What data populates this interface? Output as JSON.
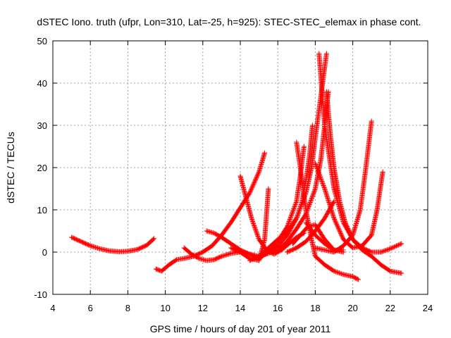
{
  "chart_data": {
    "type": "scatter",
    "title": "dSTEC Iono. truth (ufpr, Lon=310, Lat=-25, h=925): STEC-STEC_elemax in phase cont.",
    "xlabel": "GPS time / hours of day 201 of year 2011",
    "ylabel": "dSTEC  / TECUs",
    "xlim": [
      4,
      24
    ],
    "ylim": [
      -10,
      50
    ],
    "x_ticks": [
      4,
      6,
      8,
      10,
      12,
      14,
      16,
      18,
      20,
      22,
      24
    ],
    "y_ticks": [
      -10,
      0,
      10,
      20,
      30,
      40,
      50
    ],
    "grid": true,
    "marker": "+",
    "color": "#ff0000",
    "series": [
      {
        "x": [
          5.0,
          5.5,
          6.0,
          6.5,
          7.0,
          7.5,
          8.0,
          8.5,
          9.0,
          9.4
        ],
        "y": [
          3.5,
          2.5,
          1.5,
          0.8,
          0.3,
          0.1,
          0.2,
          0.6,
          1.6,
          3.2
        ]
      },
      {
        "x": [
          9.5,
          9.8,
          10.2,
          10.6,
          11.0,
          11.5,
          12.0,
          12.5,
          13.0,
          13.5,
          14.0,
          14.5,
          15.0,
          15.3
        ],
        "y": [
          -4.0,
          -4.5,
          -3.0,
          -1.8,
          -1.5,
          -1.0,
          0.0,
          1.5,
          4.0,
          7.0,
          10.5,
          14.0,
          19.0,
          23.5
        ]
      },
      {
        "x": [
          11.0,
          11.4,
          11.8,
          12.2,
          12.6,
          13.0,
          13.5,
          14.0,
          14.5,
          15.0
        ],
        "y": [
          1.0,
          -0.5,
          -1.5,
          -2.0,
          -1.8,
          -1.0,
          -0.3,
          0.0,
          -0.5,
          -1.5
        ]
      },
      {
        "x": [
          12.2,
          12.6,
          13.0,
          13.5,
          14.0,
          14.5,
          15.0,
          15.5,
          16.0
        ],
        "y": [
          5.0,
          4.5,
          3.5,
          2.0,
          0.5,
          -0.5,
          -1.0,
          -0.3,
          0.5
        ]
      },
      {
        "x": [
          14.0,
          14.3,
          14.6,
          15.0,
          15.4,
          15.8,
          16.2,
          16.6,
          17.0,
          17.4
        ],
        "y": [
          18.0,
          13.0,
          8.0,
          3.0,
          0.5,
          -0.5,
          0.5,
          2.0,
          3.5,
          4.5
        ]
      },
      {
        "x": [
          13.5,
          14.0,
          14.5,
          15.0,
          15.3,
          15.5
        ],
        "y": [
          1.0,
          0.0,
          -1.5,
          -2.0,
          3.0,
          15.0
        ]
      },
      {
        "x": [
          14.5,
          15.0,
          15.5,
          16.0,
          16.5,
          17.0,
          17.3,
          17.5,
          17.7,
          17.85
        ],
        "y": [
          -2.0,
          -1.0,
          1.0,
          3.0,
          5.0,
          8.0,
          12.0,
          17.0,
          23.0,
          30.0
        ]
      },
      {
        "x": [
          15.0,
          15.5,
          16.0,
          16.5,
          17.0,
          17.2,
          17.4
        ],
        "y": [
          -1.5,
          0.0,
          2.5,
          6.0,
          12.0,
          18.0,
          25.0
        ]
      },
      {
        "x": [
          17.0,
          17.2,
          17.5,
          17.8,
          18.0,
          18.5,
          19.0,
          19.5,
          20.0,
          20.3
        ],
        "y": [
          26.0,
          20.0,
          10.0,
          3.0,
          -1.0,
          -3.0,
          -4.5,
          -5.3,
          -5.8,
          -6.5
        ]
      },
      {
        "x": [
          15.5,
          16.0,
          16.5,
          17.0,
          17.5,
          17.8,
          18.0,
          18.3,
          18.6
        ],
        "y": [
          0.0,
          1.5,
          4.0,
          8.0,
          14.0,
          20.0,
          27.0,
          37.0,
          47.0
        ]
      },
      {
        "x": [
          16.0,
          16.5,
          17.0,
          17.5,
          18.0,
          18.3,
          18.5,
          18.7
        ],
        "y": [
          0.5,
          2.5,
          5.5,
          9.0,
          15.0,
          22.0,
          30.0,
          38.0
        ]
      },
      {
        "x": [
          18.2,
          18.5,
          19.0,
          19.5,
          20.0,
          20.5,
          21.0,
          21.5,
          22.0,
          22.6
        ],
        "y": [
          47.0,
          30.0,
          15.0,
          7.0,
          3.0,
          0.5,
          -1.0,
          -3.0,
          -4.5,
          -5.0
        ]
      },
      {
        "x": [
          18.6,
          18.8,
          19.0,
          19.3,
          19.6,
          20.0,
          20.5,
          21.0,
          21.5,
          22.0,
          22.6
        ],
        "y": [
          38.0,
          28.0,
          20.0,
          12.0,
          7.0,
          3.0,
          1.0,
          0.0,
          0.0,
          0.8,
          2.0
        ]
      },
      {
        "x": [
          18.0,
          18.5,
          19.0,
          19.5,
          20.0,
          20.4,
          20.7,
          21.0
        ],
        "y": [
          1.0,
          0.5,
          0.0,
          1.5,
          4.0,
          10.0,
          20.0,
          31.0
        ]
      },
      {
        "x": [
          18.0,
          18.5,
          19.0,
          19.5,
          20.0,
          20.5,
          21.0,
          21.3,
          21.6
        ],
        "y": [
          21.0,
          15.0,
          8.0,
          3.0,
          1.0,
          1.5,
          4.0,
          10.0,
          19.0
        ]
      },
      {
        "x": [
          16.5,
          17.0,
          17.5,
          18.0,
          18.5,
          19.0
        ],
        "y": [
          0.0,
          1.0,
          2.5,
          5.0,
          8.0,
          12.0
        ]
      },
      {
        "x": [
          16.8,
          17.2,
          17.6,
          18.0,
          18.5,
          19.0,
          19.5
        ],
        "y": [
          2.0,
          4.0,
          6.0,
          6.5,
          3.0,
          0.5,
          0.5
        ]
      },
      {
        "x": [
          17.5,
          18.0,
          18.5,
          19.0,
          19.5
        ],
        "y": [
          7.0,
          4.0,
          2.0,
          0.5,
          0.0
        ]
      }
    ]
  }
}
